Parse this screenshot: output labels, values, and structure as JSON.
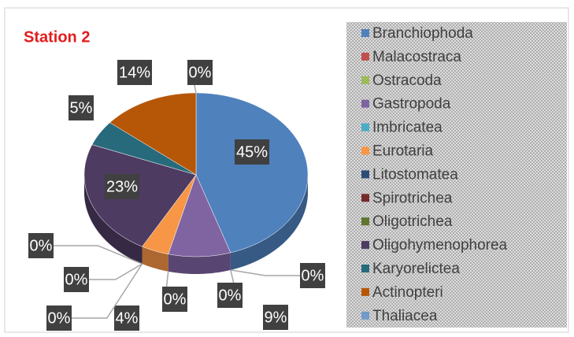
{
  "chart_data": {
    "type": "pie",
    "title": "Station 2",
    "categories": [
      "Branchiophoda",
      "Malacostraca",
      "Ostracoda",
      "Gastropoda",
      "Imbricatea",
      "Eurotaria",
      "Litostomatea",
      "Spirotrichea",
      "Oligotrichea",
      "Oligohymenophorea",
      "Karyorelictea",
      "Actinopteri",
      "Thaliacea"
    ],
    "values": [
      45,
      0,
      0,
      9,
      0,
      4,
      0,
      0,
      0,
      23,
      5,
      14,
      0
    ],
    "value_labels": [
      "45%",
      "0%",
      "0%",
      "9%",
      "0%",
      "4%",
      "0%",
      "0%",
      "0%",
      "23%",
      "5%",
      "14%",
      "0%"
    ],
    "colors": [
      "#4f81bd",
      "#c0504d",
      "#9bbb59",
      "#8064a2",
      "#4bacc6",
      "#f79646",
      "#2c4d75",
      "#772c2a",
      "#5f7530",
      "#4d3b62",
      "#276a7c",
      "#b65708",
      "#729aca"
    ],
    "legend": "right"
  }
}
